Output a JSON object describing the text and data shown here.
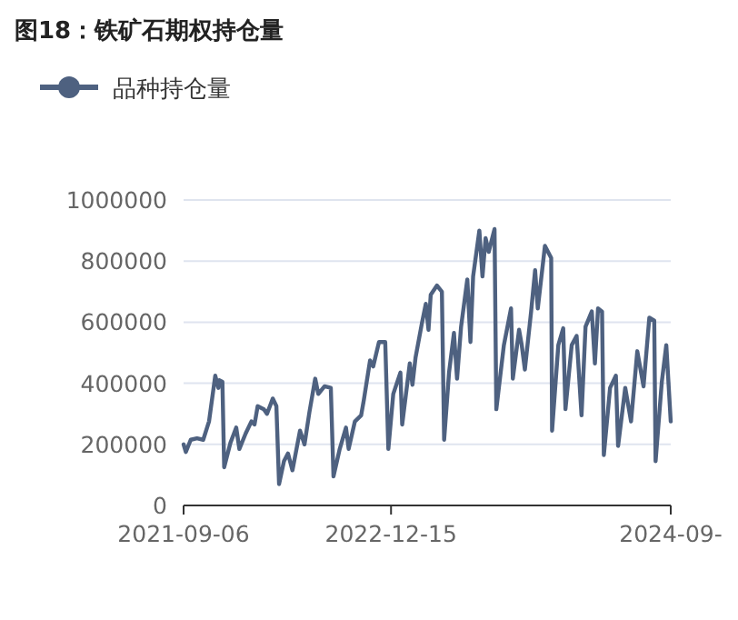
{
  "chart_data": {
    "type": "line",
    "title": "图18：铁矿石期权持仓量",
    "legend": "top left",
    "grid": "y",
    "xlim": [
      "2021-09-06",
      "2024-09-02"
    ],
    "xticks": [
      {
        "value": "2021-09-06",
        "label": "2021-09-06"
      },
      {
        "value": "2022-12-15",
        "label": "2022-12-15"
      },
      {
        "value": "2024-09-02",
        "label": "2024-09-"
      }
    ],
    "ylim": [
      0,
      1000000
    ],
    "yticks": [
      0,
      200000,
      400000,
      600000,
      800000,
      1000000
    ],
    "x": [
      "2021-09-06",
      "2021-09-11",
      "2021-09-22",
      "2021-10-06",
      "2021-10-20",
      "2021-11-02",
      "2021-11-16",
      "2021-11-23",
      "2021-11-25",
      "2021-12-02",
      "2021-12-06",
      "2021-12-20",
      "2022-01-02",
      "2022-01-09",
      "2022-01-23",
      "2022-02-05",
      "2022-02-12",
      "2022-02-19",
      "2022-03-05",
      "2022-03-12",
      "2022-03-25",
      "2022-04-02",
      "2022-04-08",
      "2022-04-19",
      "2022-04-28",
      "2022-05-08",
      "2022-05-25",
      "2022-06-04",
      "2022-06-15",
      "2022-06-28",
      "2022-07-05",
      "2022-07-19",
      "2022-08-02",
      "2022-08-08",
      "2022-08-22",
      "2022-09-05",
      "2022-09-11",
      "2022-09-25",
      "2022-10-09",
      "2022-10-15",
      "2022-10-29",
      "2022-11-05",
      "2022-11-18",
      "2022-12-02",
      "2022-12-09",
      "2022-12-20",
      "2023-01-05",
      "2023-01-09",
      "2023-01-26",
      "2023-02-01",
      "2023-02-08",
      "2023-02-22",
      "2023-03-03",
      "2023-03-09",
      "2023-03-14",
      "2023-03-28",
      "2023-04-08",
      "2023-04-13",
      "2023-04-24",
      "2023-05-05",
      "2023-05-12",
      "2023-05-21",
      "2023-06-04",
      "2023-06-11",
      "2023-06-17",
      "2023-07-01",
      "2023-07-08",
      "2023-07-15",
      "2023-07-22",
      "2023-08-04",
      "2023-08-08",
      "2023-08-25",
      "2023-09-10",
      "2023-09-14",
      "2023-09-28",
      "2023-10-04",
      "2023-10-11",
      "2023-10-25",
      "2023-11-03",
      "2023-11-09",
      "2023-11-25",
      "2023-12-09",
      "2023-12-11",
      "2023-12-25",
      "2024-01-05",
      "2024-01-10",
      "2024-01-24",
      "2024-02-04",
      "2024-02-15",
      "2024-02-24",
      "2024-03-09",
      "2024-03-16",
      "2024-03-23",
      "2024-04-01",
      "2024-04-05",
      "2024-04-19",
      "2024-05-02",
      "2024-05-07",
      "2024-05-23",
      "2024-06-05",
      "2024-06-19",
      "2024-07-03",
      "2024-07-16",
      "2024-07-27",
      "2024-07-30",
      "2024-08-13",
      "2024-08-23",
      "2024-09-02"
    ],
    "series": [
      {
        "name": "品种持仓量",
        "color": "#4e6180",
        "values": [
          200000,
          175000,
          215000,
          220000,
          215000,
          275000,
          425000,
          385000,
          410000,
          405000,
          125000,
          205000,
          255000,
          185000,
          235000,
          275000,
          265000,
          325000,
          315000,
          300000,
          350000,
          325000,
          70000,
          145000,
          170000,
          115000,
          245000,
          200000,
          305000,
          415000,
          365000,
          390000,
          385000,
          95000,
          185000,
          255000,
          185000,
          275000,
          295000,
          345000,
          475000,
          455000,
          535000,
          535000,
          185000,
          365000,
          435000,
          265000,
          465000,
          395000,
          485000,
          595000,
          660000,
          575000,
          690000,
          720000,
          700000,
          215000,
          435000,
          565000,
          415000,
          585000,
          740000,
          535000,
          750000,
          900000,
          750000,
          875000,
          830000,
          905000,
          315000,
          525000,
          645000,
          415000,
          575000,
          525000,
          445000,
          635000,
          770000,
          645000,
          850000,
          810000,
          245000,
          525000,
          580000,
          315000,
          525000,
          555000,
          295000,
          585000,
          635000,
          465000,
          645000,
          635000,
          165000,
          385000,
          425000,
          195000,
          385000,
          275000,
          505000,
          390000,
          615000,
          605000,
          145000,
          405000,
          525000,
          275000
        ]
      }
    ]
  }
}
